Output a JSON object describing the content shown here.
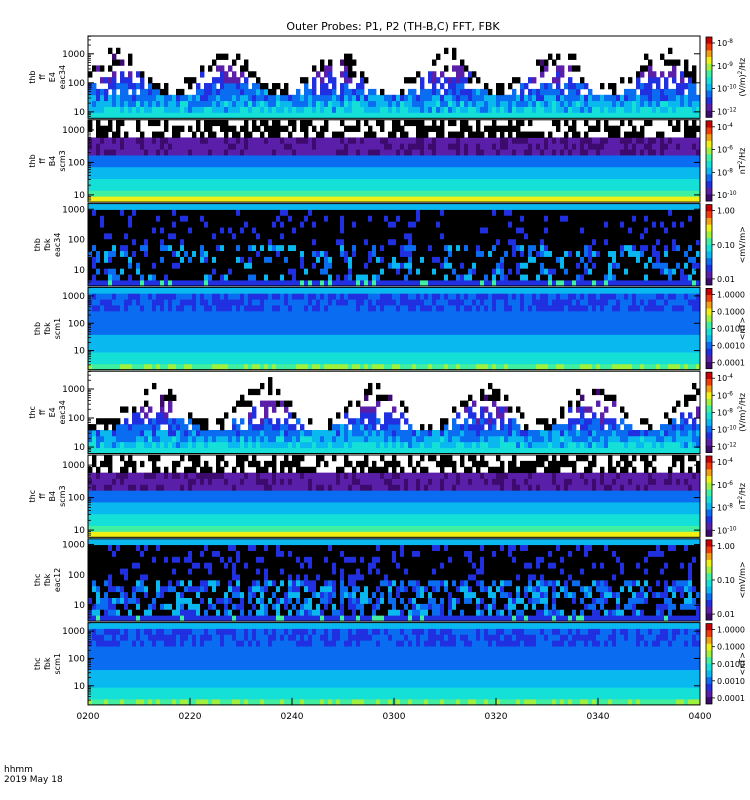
{
  "title": "Outer Probes: P1, P2 (TH-B,C) FFT, FBK",
  "time_label": {
    "line1": "hhmm",
    "line2": "2019 May 18"
  },
  "x_ticks": [
    "0200",
    "0220",
    "0240",
    "0300",
    "0320",
    "0340",
    "0400"
  ],
  "colors": {
    "palette": [
      "#000000",
      "#3d0a6e",
      "#5a1ea8",
      "#2030e0",
      "#0a6cf0",
      "#0ab8f0",
      "#14e0d8",
      "#40f0a0",
      "#a0f040",
      "#f0f014",
      "#f0a014",
      "#f03c0a",
      "#c80000"
    ],
    "frame": "#000000"
  },
  "chart_data": [
    {
      "type": "heatmap",
      "name": "thb-ff-eac34",
      "ylabel_lines": [
        "thb",
        "ff",
        "E4",
        "eac34"
      ],
      "y_ticks": [
        "1000",
        "100",
        "10"
      ],
      "ylim": [
        6,
        4096
      ],
      "yscale": "log",
      "cb_ticks": [
        "10^-8",
        "10^-9",
        "10^-10",
        "10^-12"
      ],
      "cb_label": "(V/m)^2/Hz",
      "pattern": "wave",
      "base_level": 2,
      "lowband": true
    },
    {
      "type": "heatmap",
      "name": "thb-ff-scm3",
      "ylabel_lines": [
        "thb",
        "ff",
        "B4",
        "scm3"
      ],
      "y_ticks": [
        "1000",
        "100",
        "10"
      ],
      "ylim": [
        6,
        2048
      ],
      "yscale": "log",
      "cb_ticks": [
        "10^-4",
        "10^-6",
        "10^-8",
        "10^-10"
      ],
      "cb_label": "nT^2/Hz",
      "pattern": "scm-ff"
    },
    {
      "type": "heatmap",
      "name": "thb-fbk-eac34",
      "ylabel_lines": [
        "thb",
        "fbk",
        "eac34"
      ],
      "y_ticks": [
        "1000",
        "100",
        "10"
      ],
      "ylim": [
        3,
        1536
      ],
      "yscale": "log",
      "cb_ticks": [
        "1.00",
        "0.10",
        "0.01"
      ],
      "cb_label": "<mV/m>",
      "pattern": "fbk-e"
    },
    {
      "type": "heatmap",
      "name": "thb-fbk-scm1",
      "ylabel_lines": [
        "thb",
        "fbk",
        "scm1"
      ],
      "y_ticks": [
        "1000",
        "100",
        "10"
      ],
      "ylim": [
        2,
        2048
      ],
      "yscale": "log",
      "cb_ticks": [
        "1.0000",
        "0.1000",
        "0.0100",
        "0.0010",
        "0.0001"
      ],
      "cb_label": "<nT>",
      "pattern": "fbk-b"
    },
    {
      "type": "heatmap",
      "name": "thc-ff-eac34",
      "ylabel_lines": [
        "thc",
        "ff",
        "E4",
        "eac34"
      ],
      "y_ticks": [
        "1000",
        "100",
        "10"
      ],
      "ylim": [
        6,
        4096
      ],
      "yscale": "log",
      "cb_ticks": [
        "10^-4",
        "10^-6",
        "10^-8",
        "10^-10",
        "10^-12"
      ],
      "cb_label": "(V/m)^2/Hz",
      "pattern": "wave",
      "base_level": 2,
      "lowband": true
    },
    {
      "type": "heatmap",
      "name": "thc-ff-scm3",
      "ylabel_lines": [
        "thc",
        "ff",
        "B4",
        "scm3"
      ],
      "y_ticks": [
        "1000",
        "100",
        "10"
      ],
      "ylim": [
        6,
        2048
      ],
      "yscale": "log",
      "cb_ticks": [
        "10^-4",
        "10^-6",
        "10^-8",
        "10^-10"
      ],
      "cb_label": "nT^2/Hz",
      "pattern": "scm-ff"
    },
    {
      "type": "heatmap",
      "name": "thc-fbk-eac12",
      "ylabel_lines": [
        "thc",
        "fbk",
        "eac12"
      ],
      "y_ticks": [
        "1000",
        "100",
        "10"
      ],
      "ylim": [
        3,
        1536
      ],
      "yscale": "log",
      "cb_ticks": [
        "1.00",
        "0.10",
        "0.01"
      ],
      "cb_label": "<mV/m>",
      "pattern": "fbk-e2"
    },
    {
      "type": "heatmap",
      "name": "thc-fbk-scm1",
      "ylabel_lines": [
        "thc",
        "fbk",
        "scm1"
      ],
      "y_ticks": [
        "1000",
        "100",
        "10"
      ],
      "ylim": [
        2,
        2048
      ],
      "yscale": "log",
      "cb_ticks": [
        "1.0000",
        "0.1000",
        "0.0100",
        "0.0010",
        "0.0001"
      ],
      "cb_label": "<nT>",
      "pattern": "fbk-b"
    }
  ]
}
